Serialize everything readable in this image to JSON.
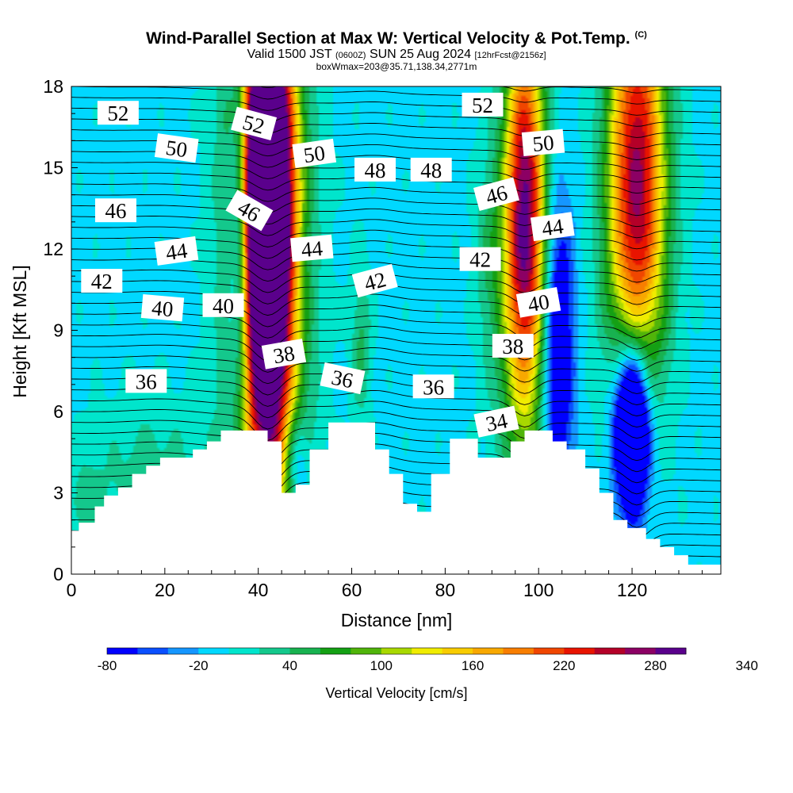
{
  "title": "Wind-Parallel Section at Max W: Vertical Velocity & Pot.Temp.",
  "title_mark": "(C)",
  "subtitle_main": "Valid 1500 JST",
  "subtitle_utc": "(0600Z)",
  "subtitle_date": "SUN 25 Aug 2024",
  "subtitle_fcst": "[12hrFcst@2156z]",
  "subtitle2": "boxWmax=203@35.71,138.34,2771m",
  "chart_data": {
    "type": "heatmap",
    "xlabel": "Distance [nm]",
    "ylabel": "Height [Kft MSL]",
    "xlim": [
      0,
      139
    ],
    "ylim": [
      0,
      18
    ],
    "x_ticks": [
      "0",
      "20",
      "40",
      "60",
      "80",
      "100",
      "120"
    ],
    "y_ticks": [
      "0",
      "3",
      "6",
      "9",
      "12",
      "15",
      "18"
    ],
    "colorbar": {
      "label": "Vertical Velocity [cm/s]",
      "tick_labels": [
        "-80",
        "-20",
        "40",
        "100",
        "160",
        "220",
        "280",
        "340"
      ],
      "min": -80,
      "step": 20,
      "colors": [
        "#0000ff",
        "#0a4fff",
        "#1596ff",
        "#00d8ff",
        "#00e5cc",
        "#14c88c",
        "#18b250",
        "#14a014",
        "#50b40a",
        "#a8d800",
        "#f0ec00",
        "#f8cc00",
        "#f8a800",
        "#f87e00",
        "#f04600",
        "#e81400",
        "#b40028",
        "#8c0064",
        "#5a008c"
      ]
    },
    "background_value": -5,
    "terrain_kft": [
      [
        0,
        1.6
      ],
      [
        1.6,
        1.6
      ],
      [
        1.6,
        1.9
      ],
      [
        5,
        1.9
      ],
      [
        5,
        2.5
      ],
      [
        7,
        2.5
      ],
      [
        7,
        2.9
      ],
      [
        10,
        2.9
      ],
      [
        10,
        3.2
      ],
      [
        13,
        3.2
      ],
      [
        13,
        3.7
      ],
      [
        16,
        3.7
      ],
      [
        16,
        4
      ],
      [
        19,
        4
      ],
      [
        19,
        4.3
      ],
      [
        26,
        4.3
      ],
      [
        26,
        4.6
      ],
      [
        29,
        4.6
      ],
      [
        29,
        4.9
      ],
      [
        32,
        4.9
      ],
      [
        32,
        5.3
      ],
      [
        42,
        5.3
      ],
      [
        42,
        4.9
      ],
      [
        45,
        4.9
      ],
      [
        45,
        3
      ],
      [
        48,
        3
      ],
      [
        48,
        3.3
      ],
      [
        51,
        3.3
      ],
      [
        51,
        4.6
      ],
      [
        55,
        4.6
      ],
      [
        55,
        5.6
      ],
      [
        65,
        5.6
      ],
      [
        65,
        4.6
      ],
      [
        68,
        4.6
      ],
      [
        68,
        3.7
      ],
      [
        71,
        3.7
      ],
      [
        71,
        2.6
      ],
      [
        74,
        2.6
      ],
      [
        74,
        2.3
      ],
      [
        77,
        2.3
      ],
      [
        77,
        3.7
      ],
      [
        81,
        3.7
      ],
      [
        81,
        5
      ],
      [
        87,
        5
      ],
      [
        87,
        4.3
      ],
      [
        94,
        4.3
      ],
      [
        94,
        4.9
      ],
      [
        97,
        4.9
      ],
      [
        97,
        5.3
      ],
      [
        103,
        5.3
      ],
      [
        103,
        4.9
      ],
      [
        106,
        4.9
      ],
      [
        106,
        4.6
      ],
      [
        110,
        4.6
      ],
      [
        110,
        3.9
      ],
      [
        113,
        3.9
      ],
      [
        113,
        3
      ],
      [
        116,
        3
      ],
      [
        116,
        2
      ],
      [
        119,
        2
      ],
      [
        119,
        1.7
      ],
      [
        123,
        1.7
      ],
      [
        123,
        1.3
      ],
      [
        126,
        1.3
      ],
      [
        126,
        1
      ],
      [
        129,
        1
      ],
      [
        129,
        0.7
      ],
      [
        132,
        0.7
      ],
      [
        132,
        0.35
      ],
      [
        139,
        0.35
      ]
    ],
    "velocity_cells": [
      {
        "x": 42,
        "y": 12.6,
        "sx": 3.5,
        "sy": 5.5,
        "value": 345
      },
      {
        "x": 42,
        "y": 9,
        "sx": 5.5,
        "sy": 10,
        "value": 160
      },
      {
        "x": 41,
        "y": 16,
        "sx": 4.5,
        "sy": 4,
        "value": 130
      },
      {
        "x": 36,
        "y": 13,
        "sx": 1.8,
        "sy": 5,
        "value": -140
      },
      {
        "x": 48,
        "y": 4,
        "sx": 2,
        "sy": 1.4,
        "value": -90
      },
      {
        "x": 97,
        "y": 14,
        "sx": 3,
        "sy": 5,
        "value": 230
      },
      {
        "x": 97,
        "y": 10,
        "sx": 4.5,
        "sy": 5,
        "value": 90
      },
      {
        "x": 104,
        "y": 8.5,
        "sx": 2.4,
        "sy": 4,
        "value": -130
      },
      {
        "x": 121,
        "y": 16,
        "sx": 4.3,
        "sy": 5.5,
        "value": 220
      },
      {
        "x": 121,
        "y": 11.5,
        "sx": 4.5,
        "sy": 4,
        "value": 80
      },
      {
        "x": 120,
        "y": 5.5,
        "sx": 2.6,
        "sy": 2.2,
        "value": -250
      },
      {
        "x": 17,
        "y": 3.6,
        "sx": 9,
        "sy": 2,
        "value": 35
      },
      {
        "x": 3,
        "y": 2.5,
        "sx": 3,
        "sy": 1.2,
        "value": 30
      },
      {
        "x": 62,
        "y": 8.5,
        "sx": 1.5,
        "sy": 2,
        "value": 50
      },
      {
        "x": 89,
        "y": 12,
        "sx": 2,
        "sy": 2.5,
        "value": 30
      }
    ],
    "theta_contours": [
      {
        "value": 34,
        "baseline": 5.6,
        "label": "34",
        "label_at": [
          91,
          5.6
        ]
      },
      {
        "value": 36,
        "baseline": 7.1,
        "label": "36",
        "label_at": [
          16,
          7.1
        ]
      },
      {
        "value": 38,
        "baseline": 8.3,
        "label": "38",
        "label_at": [
          45,
          8.1
        ]
      },
      {
        "value": 40,
        "baseline": 9.9,
        "label": "40",
        "label_at": [
          20,
          9.9
        ]
      },
      {
        "value": 42,
        "baseline": 11.0,
        "label": "42",
        "label_at": [
          7,
          10.8
        ]
      },
      {
        "value": 44,
        "baseline": 12.1,
        "label": "44",
        "label_at": [
          20,
          11.9
        ]
      },
      {
        "value": 46,
        "baseline": 13.5,
        "label": "46",
        "label_at": [
          9,
          13.3
        ]
      },
      {
        "value": 48,
        "baseline": 14.8,
        "label": "48",
        "label_at": [
          65,
          14.9
        ]
      },
      {
        "value": 50,
        "baseline": 15.9,
        "label": "50",
        "label_at": [
          22,
          15.7
        ]
      },
      {
        "value": 52,
        "baseline": 17.1,
        "label": "52",
        "label_at": [
          10,
          17.0
        ]
      }
    ],
    "theta_labels": [
      {
        "text": "52",
        "x": 10,
        "y": 17.0,
        "rot": 0
      },
      {
        "text": "52",
        "x": 39,
        "y": 16.6,
        "rot": 15
      },
      {
        "text": "52",
        "x": 88,
        "y": 17.3,
        "rot": 0
      },
      {
        "text": "50",
        "x": 22.5,
        "y": 15.7,
        "rot": 8
      },
      {
        "text": "50",
        "x": 52,
        "y": 15.5,
        "rot": -8
      },
      {
        "text": "50",
        "x": 101,
        "y": 15.9,
        "rot": -5
      },
      {
        "text": "48",
        "x": 65,
        "y": 14.9,
        "rot": 0
      },
      {
        "text": "48",
        "x": 77,
        "y": 14.9,
        "rot": 0
      },
      {
        "text": "46",
        "x": 9.5,
        "y": 13.4,
        "rot": 0
      },
      {
        "text": "46",
        "x": 38,
        "y": 13.4,
        "rot": 30
      },
      {
        "text": "46",
        "x": 91,
        "y": 14.0,
        "rot": -15
      },
      {
        "text": "44",
        "x": 22.5,
        "y": 11.9,
        "rot": -8
      },
      {
        "text": "44",
        "x": 51.5,
        "y": 12.0,
        "rot": -5
      },
      {
        "text": "44",
        "x": 103,
        "y": 12.8,
        "rot": -8
      },
      {
        "text": "42",
        "x": 6.5,
        "y": 10.8,
        "rot": 0
      },
      {
        "text": "42",
        "x": 65,
        "y": 10.8,
        "rot": -15
      },
      {
        "text": "42",
        "x": 87.5,
        "y": 11.6,
        "rot": 0
      },
      {
        "text": "40",
        "x": 19.5,
        "y": 9.8,
        "rot": 5
      },
      {
        "text": "40",
        "x": 32.5,
        "y": 9.9,
        "rot": 0
      },
      {
        "text": "40",
        "x": 100,
        "y": 10.0,
        "rot": -10
      },
      {
        "text": "38",
        "x": 45.5,
        "y": 8.1,
        "rot": -10
      },
      {
        "text": "38",
        "x": 94.5,
        "y": 8.4,
        "rot": 0
      },
      {
        "text": "36",
        "x": 16,
        "y": 7.1,
        "rot": 0
      },
      {
        "text": "36",
        "x": 58,
        "y": 7.2,
        "rot": 12
      },
      {
        "text": "36",
        "x": 77.5,
        "y": 6.9,
        "rot": 0
      },
      {
        "text": "34",
        "x": 91,
        "y": 5.6,
        "rot": -12
      }
    ]
  }
}
